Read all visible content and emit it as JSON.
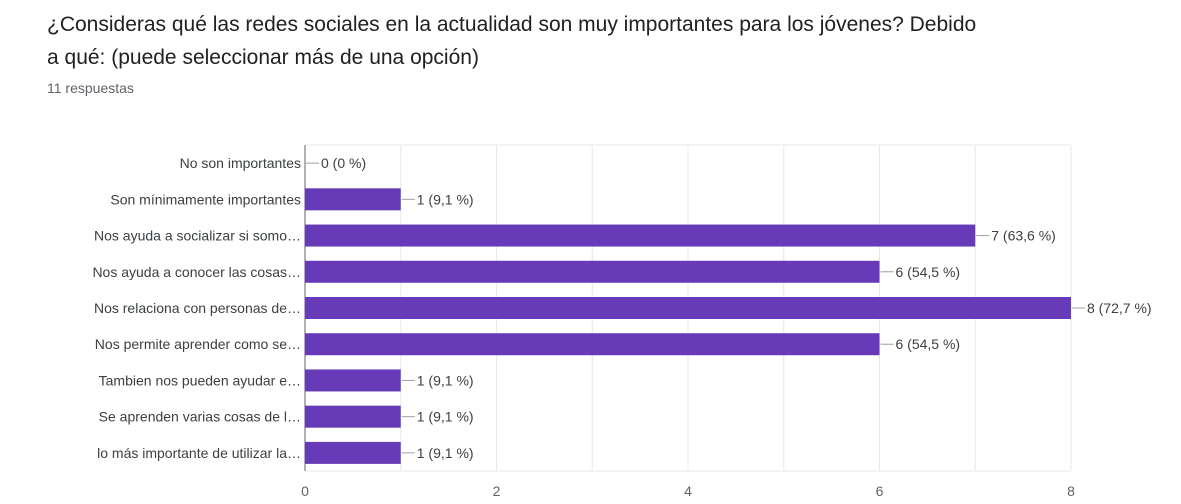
{
  "question": {
    "title_line1": "¿Consideras qué las redes sociales en la actualidad son muy importantes para los jóvenes? Debido",
    "title_line2": "a qué: (puede seleccionar más de una opción)",
    "responses": "11 respuestas"
  },
  "chart_data": {
    "type": "bar",
    "orientation": "horizontal",
    "categories": [
      "No son importantes",
      "Son mínimamente importantes",
      "Nos ayuda a socializar si somo…",
      "Nos ayuda a conocer las cosas…",
      "Nos relaciona con personas de…",
      "Nos permite aprender como se…",
      "Tambien nos pueden ayudar e…",
      "Se aprenden varias cosas de l…",
      "lo más importante de utilizar la…"
    ],
    "values": [
      0,
      1,
      7,
      6,
      8,
      6,
      1,
      1,
      1
    ],
    "value_labels": [
      "0 (0 %)",
      "1 (9,1 %)",
      "7 (63,6 %)",
      "6 (54,5 %)",
      "8 (72,7 %)",
      "6 (54,5 %)",
      "1 (9,1 %)",
      "1 (9,1 %)",
      "1 (9,1 %)"
    ],
    "xlim": [
      0,
      8
    ],
    "x_ticks": [
      "0",
      "2",
      "4",
      "6",
      "8"
    ],
    "grid": true,
    "bar_color": "#673ab7",
    "grid_color": "#e8e8e8",
    "axis_color": "#5f6368"
  }
}
